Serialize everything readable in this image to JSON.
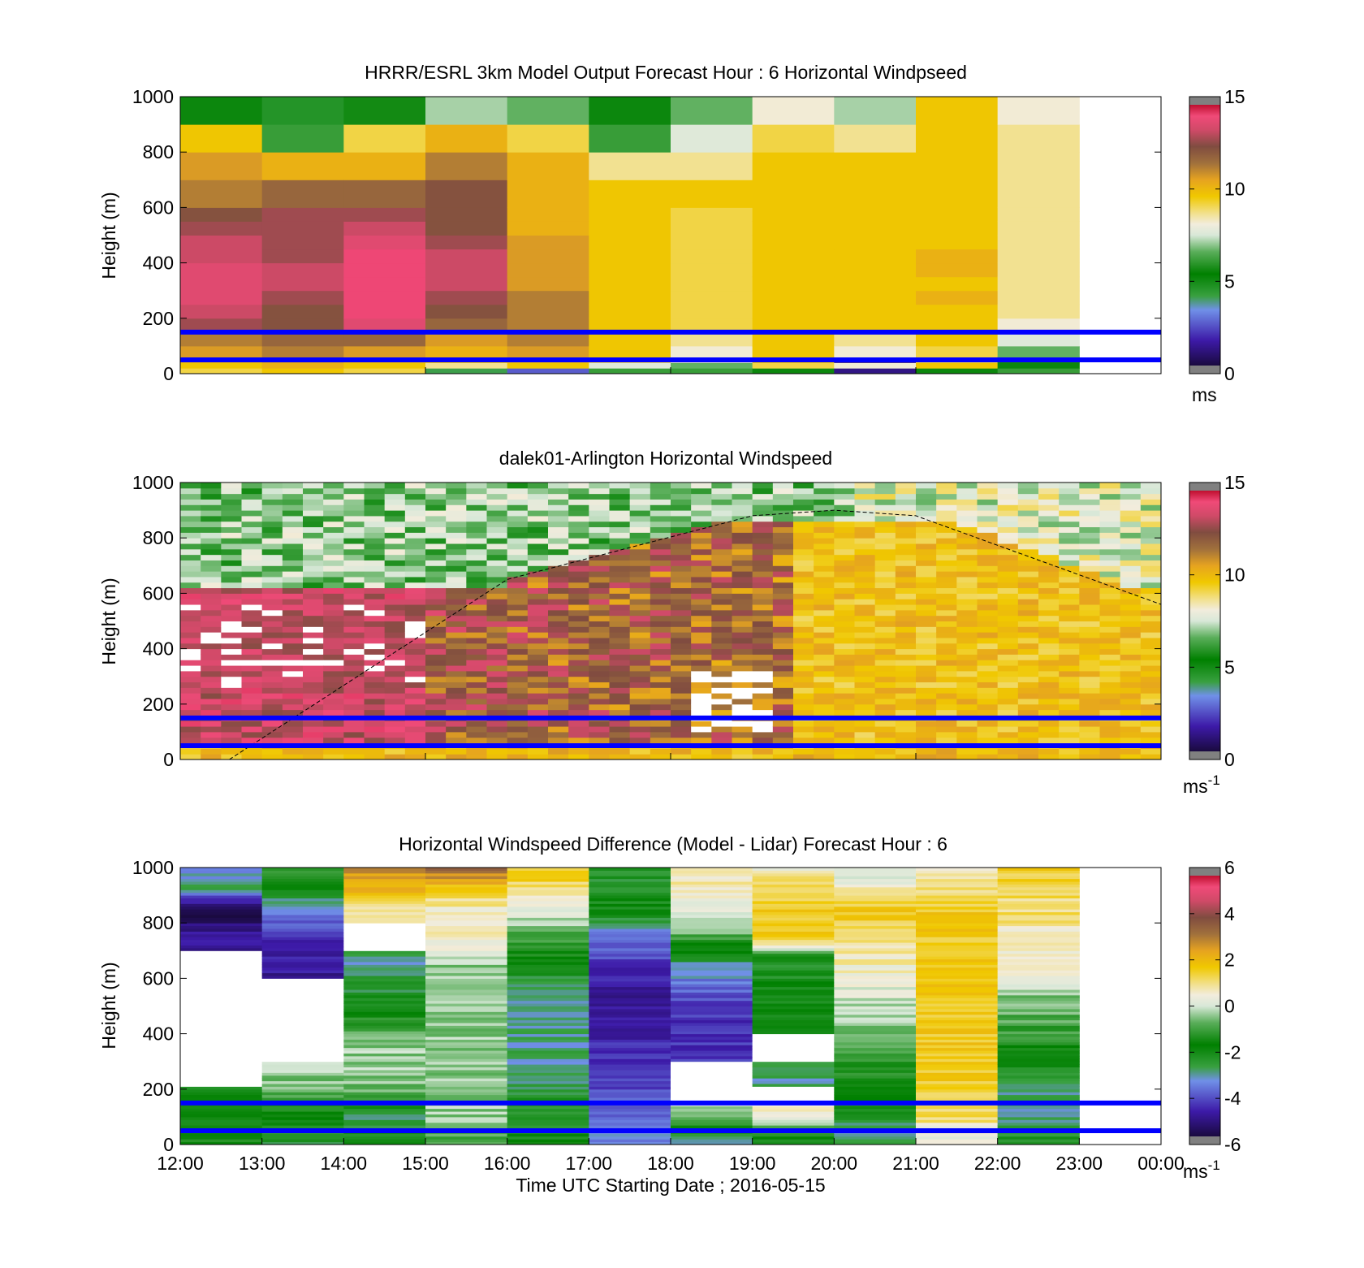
{
  "figure": {
    "xticks": [
      "12:00",
      "13:00",
      "14:00",
      "15:00",
      "16:00",
      "17:00",
      "18:00",
      "19:00",
      "20:00",
      "21:00",
      "22:00",
      "23:00",
      "00:00"
    ],
    "xlabel": "Time UTC  Starting Date ; 2016-05-15"
  },
  "chart_data": [
    {
      "type": "heatmap",
      "title": "HRRR/ESRL 3km Model Output   Forecast Hour : 6 Horizontal Windpseed",
      "ylabel": "Height (m)",
      "xlabel": "",
      "ylim": [
        0,
        1000
      ],
      "yticks": [
        "0",
        "200",
        "400",
        "600",
        "800",
        "1000"
      ],
      "x_columns_utc_hour": [
        12,
        13,
        14,
        15,
        16,
        17,
        18,
        19,
        20,
        21,
        22
      ],
      "y_bin_bottoms_m": [
        0,
        20,
        40,
        60,
        100,
        150,
        200,
        250,
        300,
        350,
        400,
        450,
        500,
        550,
        600,
        700,
        800,
        900
      ],
      "values_ms": [
        [
          9.0,
          9.5,
          9.0,
          4.0,
          2.5,
          6.0,
          6.0,
          5.0,
          1.0,
          5.0,
          6.0
        ],
        [
          9.5,
          10.0,
          9.5,
          8.5,
          9.5,
          7.5,
          6.5,
          9.0,
          8.0,
          9.5,
          5.0
        ],
        [
          10.0,
          10.5,
          10.0,
          9.5,
          10.0,
          9.0,
          8.0,
          9.5,
          1.0,
          9.0,
          5.5
        ],
        [
          10.5,
          11.0,
          10.5,
          10.0,
          10.5,
          9.5,
          8.0,
          9.5,
          8.0,
          9.0,
          6.5
        ],
        [
          11.0,
          11.5,
          11.5,
          10.5,
          11.0,
          9.5,
          8.5,
          9.5,
          8.5,
          9.5,
          7.5
        ],
        [
          12.5,
          12.0,
          13.5,
          11.5,
          11.0,
          9.5,
          9.0,
          9.5,
          9.5,
          9.5,
          8.0
        ],
        [
          13.0,
          12.0,
          14.0,
          12.0,
          11.0,
          9.5,
          9.0,
          9.5,
          9.5,
          9.5,
          8.5
        ],
        [
          13.5,
          12.5,
          14.0,
          12.5,
          11.0,
          9.5,
          9.0,
          9.5,
          9.5,
          10.0,
          8.5
        ],
        [
          13.5,
          13.0,
          14.0,
          13.0,
          10.5,
          9.5,
          9.0,
          9.5,
          9.5,
          9.5,
          8.5
        ],
        [
          13.5,
          13.0,
          14.0,
          13.0,
          10.5,
          9.5,
          9.0,
          9.5,
          9.5,
          10.0,
          8.5
        ],
        [
          13.0,
          12.5,
          14.0,
          13.0,
          10.5,
          9.5,
          9.0,
          9.5,
          9.5,
          10.0,
          8.5
        ],
        [
          13.0,
          12.5,
          13.5,
          12.5,
          10.5,
          9.5,
          9.0,
          9.5,
          9.5,
          9.5,
          8.5
        ],
        [
          12.5,
          12.5,
          13.0,
          12.0,
          10.0,
          9.5,
          9.0,
          9.5,
          9.5,
          9.5,
          8.5
        ],
        [
          12.0,
          12.5,
          12.5,
          12.0,
          10.0,
          9.5,
          9.0,
          9.5,
          9.5,
          9.5,
          8.5
        ],
        [
          11.0,
          11.5,
          11.5,
          12.0,
          10.0,
          9.5,
          9.5,
          9.5,
          9.5,
          9.5,
          8.5
        ],
        [
          10.5,
          10.0,
          10.0,
          11.0,
          10.0,
          8.5,
          8.5,
          9.5,
          9.5,
          9.5,
          8.5
        ],
        [
          9.5,
          6.0,
          9.0,
          10.0,
          9.0,
          6.0,
          7.5,
          9.0,
          8.5,
          9.5,
          8.5
        ],
        [
          5.0,
          4.5,
          5.5,
          7.0,
          6.5,
          5.0,
          6.5,
          8.0,
          7.0,
          9.5,
          8.0
        ]
      ],
      "overlay_lines_m": [
        50,
        150
      ],
      "colorbar": {
        "min": 0,
        "max": 15,
        "ticks": [
          "0",
          "5",
          "10",
          "15"
        ],
        "label": "ms"
      }
    },
    {
      "type": "heatmap",
      "title": "dalek01-Arlington  Horizontal Windspeed",
      "ylabel": "Height (m)",
      "xlabel": "",
      "ylim": [
        0,
        1000
      ],
      "yticks": [
        "0",
        "200",
        "400",
        "600",
        "800",
        "1000"
      ],
      "x_utc_hours": [
        12,
        24
      ],
      "time_step_minutes": 15,
      "height_step_m": 20,
      "description_of_values": "approximate lidar wind speed field: strong (12-14 m/s) jet below ~700 m from 12:00 to ~19:00 UTC, decaying to 8-10 m/s after 20:00; 4-8 m/s aloft above the boundary layer top",
      "boundary_layer_curve": {
        "x_utc_hours": [
          12.6,
          16.0,
          19.0,
          20.0,
          21.0,
          24.0
        ],
        "y_m": [
          0,
          650,
          880,
          900,
          880,
          560
        ]
      },
      "overlay_lines_m": [
        50,
        150
      ],
      "colorbar": {
        "min": 0,
        "max": 15,
        "ticks": [
          "0",
          "5",
          "10",
          "15"
        ],
        "label": "ms",
        "label_exponent": "-1"
      }
    },
    {
      "type": "heatmap",
      "title": "Horizontal Windspeed Difference (Model - Lidar) Forecast Hour : 6",
      "ylabel": "Height (m)",
      "xlabel": "Time UTC  Starting Date ; 2016-05-15",
      "ylim": [
        0,
        1000
      ],
      "yticks": [
        "0",
        "200",
        "400",
        "600",
        "800",
        "1000"
      ],
      "x_columns_utc_hour": [
        12,
        13,
        14,
        15,
        16,
        17,
        18,
        19,
        20,
        21,
        22
      ],
      "column_profiles_diff_ms": [
        [
          -1.5,
          -2.0,
          -2.0,
          null,
          null,
          null,
          null,
          null,
          -5.0,
          -6.0,
          -3.0,
          -3.5
        ],
        [
          -2.5,
          -2.0,
          -1.0,
          -0.5,
          null,
          null,
          null,
          -5.0,
          -4.5,
          -3.5,
          -2.0,
          -1.5
        ],
        [
          -2.0,
          -3.0,
          -1.0,
          -0.5,
          -0.5,
          -1.5,
          -2.5,
          -3.0,
          null,
          0.5,
          2.0,
          2.5
        ],
        [
          -1.0,
          -0.5,
          -0.5,
          -0.5,
          -0.5,
          -0.5,
          -0.5,
          -0.5,
          0.5,
          0.5,
          1.5,
          3.0
        ],
        [
          -2.0,
          -2.5,
          -2.5,
          -3.0,
          -3.0,
          -3.0,
          -3.0,
          -2.0,
          -1.0,
          0.0,
          1.0,
          1.5
        ],
        [
          -3.5,
          -4.0,
          -4.0,
          -4.5,
          -4.5,
          -5.0,
          -5.0,
          -4.5,
          -3.5,
          -2.0,
          -2.5,
          -2.5
        ],
        [
          -3.0,
          -0.5,
          null,
          null,
          -4.5,
          -4.5,
          -4.0,
          -3.0,
          -1.0,
          0.0,
          0.5,
          0.5
        ],
        [
          -2.0,
          0.5,
          null,
          -3.0,
          null,
          -2.0,
          -2.0,
          -2.5,
          1.5,
          1.5,
          1.0,
          0.5
        ],
        [
          -3.0,
          -2.5,
          -2.0,
          -1.5,
          -1.0,
          -0.5,
          0.0,
          0.5,
          1.0,
          1.5,
          0.5,
          0.0
        ],
        [
          0.0,
          1.0,
          1.0,
          1.5,
          1.5,
          1.5,
          1.5,
          1.5,
          1.5,
          1.5,
          1.0,
          0.5
        ],
        [
          -2.5,
          -3.0,
          -3.0,
          -2.5,
          -1.5,
          -1.0,
          -0.5,
          0.5,
          0.5,
          1.0,
          1.0,
          1.5
        ]
      ],
      "profile_heights_m": [
        25,
        100,
        175,
        250,
        350,
        450,
        550,
        650,
        750,
        850,
        925,
        990
      ],
      "overlay_lines_m": [
        50,
        150
      ],
      "colorbar": {
        "min": -6,
        "max": 6,
        "ticks": [
          "-6",
          "-4",
          "-2",
          "0",
          "2",
          "4",
          "6"
        ],
        "label": "ms",
        "label_exponent": "-1"
      }
    }
  ]
}
